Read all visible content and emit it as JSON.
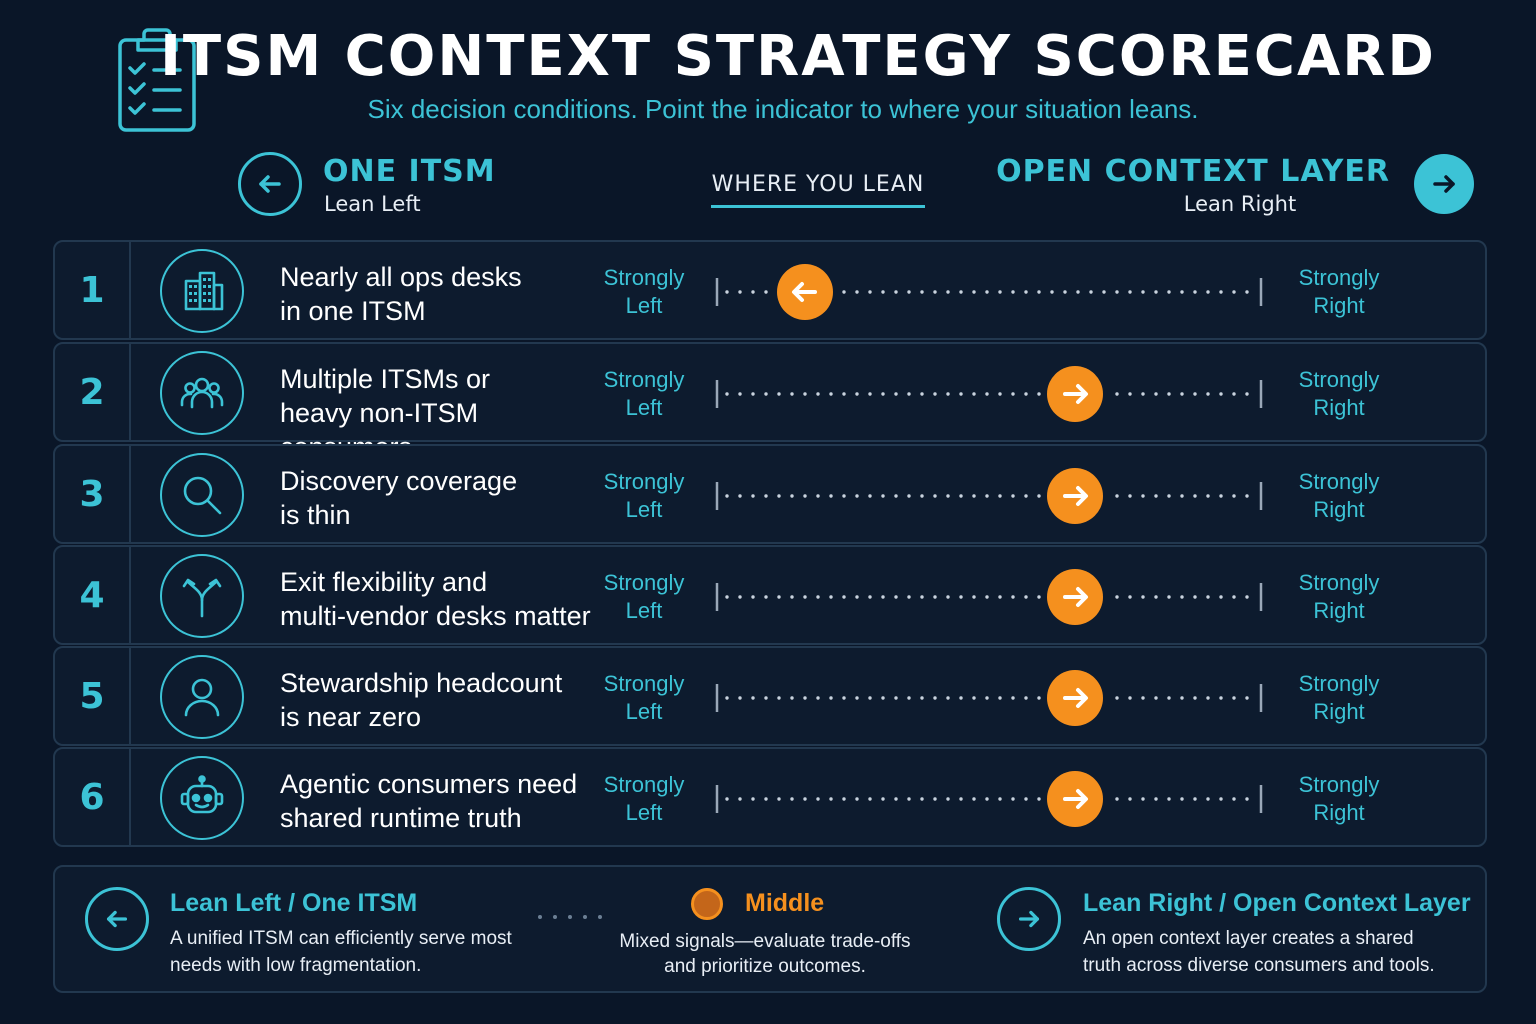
{
  "header": {
    "title": "ITSM CONTEXT STRATEGY SCORECARD",
    "subtitle": "Six decision conditions. Point the indicator to where your situation leans.",
    "icon": "clipboard-checklist-icon"
  },
  "columns": {
    "left": {
      "title": "ONE ITSM",
      "sub": "Lean Left",
      "icon": "arrow-left-icon"
    },
    "center": {
      "title": "WHERE YOU LEAN"
    },
    "right": {
      "title": "OPEN CONTEXT LAYER",
      "sub": "Lean Right",
      "icon": "arrow-right-icon"
    }
  },
  "scale": {
    "left_label_1": "Strongly",
    "left_label_2": "Left",
    "right_label_1": "Strongly",
    "right_label_2": "Right"
  },
  "colors": {
    "background": "#0a1628",
    "accent": "#3cc3d6",
    "indicator": "#f5901e",
    "border": "#22384f"
  },
  "rows": [
    {
      "number": "1",
      "line1": "Nearly all ops desks",
      "line2": "in one ITSM",
      "icon": "building-icon",
      "lean": 0.16,
      "direction": "left"
    },
    {
      "number": "2",
      "line1": "Multiple ITSMs or",
      "line2": "heavy non-ITSM consumers",
      "icon": "group-icon",
      "lean": 0.65,
      "direction": "right"
    },
    {
      "number": "3",
      "line1": "Discovery coverage",
      "line2": "is thin",
      "icon": "search-icon",
      "lean": 0.65,
      "direction": "right"
    },
    {
      "number": "4",
      "line1": "Exit flexibility and",
      "line2": "multi-vendor desks matter",
      "icon": "fork-arrows-icon",
      "lean": 0.65,
      "direction": "right"
    },
    {
      "number": "5",
      "line1": "Stewardship headcount",
      "line2": "is near zero",
      "icon": "person-icon",
      "lean": 0.65,
      "direction": "right"
    },
    {
      "number": "6",
      "line1": "Agentic consumers need",
      "line2": "shared runtime truth",
      "icon": "robot-icon",
      "lean": 0.65,
      "direction": "right"
    }
  ],
  "legend": {
    "left": {
      "title": "Lean Left / One ITSM",
      "text": "A unified ITSM can efficiently serve most needs with low fragmentation."
    },
    "middle": {
      "title": "Middle",
      "text": "Mixed signals—evaluate trade-offs and prioritize outcomes."
    },
    "right": {
      "title": "Lean Right / Open Context Layer",
      "text": "An open context layer creates a shared truth across diverse consumers and tools."
    }
  }
}
